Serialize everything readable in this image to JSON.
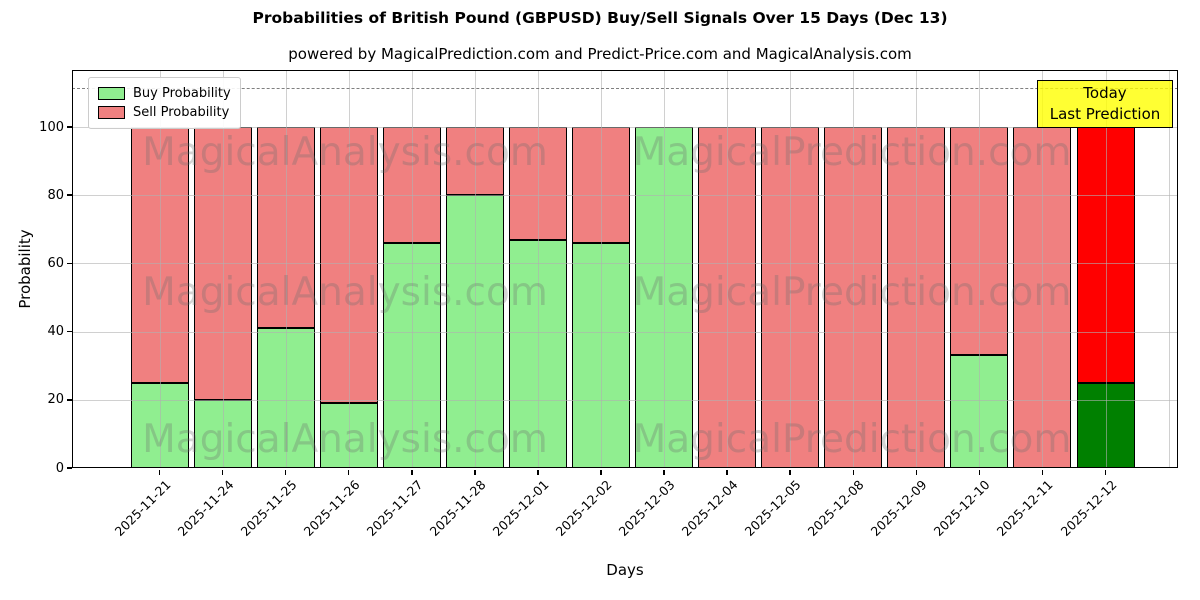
{
  "chart_data": {
    "type": "bar",
    "stacked": true,
    "title": "Probabilities of British Pound (GBPUSD) Buy/Sell Signals Over 15 Days (Dec 13)",
    "subtitle": "powered by MagicalPrediction.com and Predict-Price.com and MagicalAnalysis.com",
    "xlabel": "Days",
    "ylabel": "Probability",
    "yticks": [
      0,
      20,
      40,
      60,
      80,
      100
    ],
    "ylim": [
      0,
      117
    ],
    "dashed_line_y": 111,
    "grid": true,
    "legend_position": "upper-left",
    "categories": [
      "2025-11-21",
      "2025-11-24",
      "2025-11-25",
      "2025-11-26",
      "2025-11-27",
      "2025-11-28",
      "2025-12-01",
      "2025-12-02",
      "2025-12-03",
      "2025-12-04",
      "2025-12-05",
      "2025-12-08",
      "2025-12-09",
      "2025-12-10",
      "2025-12-11",
      "2025-12-12"
    ],
    "series": [
      {
        "name": "Buy Probability",
        "color": "#90EE90",
        "values": [
          25,
          20,
          41,
          19,
          66,
          80,
          67,
          66,
          100,
          0,
          0,
          0,
          0,
          33,
          0,
          25
        ]
      },
      {
        "name": "Sell Probability",
        "color": "#F08080",
        "values": [
          75,
          80,
          59,
          81,
          34,
          20,
          33,
          34,
          0,
          100,
          100,
          100,
          100,
          67,
          100,
          75
        ]
      }
    ],
    "today": {
      "index": 15,
      "buy_color": "#008000",
      "sell_color": "#FF0000"
    },
    "annotation": {
      "lines": [
        "Today",
        "Last Prediction"
      ],
      "bg_color": "#FFFF00"
    },
    "watermarks": [
      "MagicalAnalysis.com",
      "MagicalPrediction.com"
    ]
  }
}
